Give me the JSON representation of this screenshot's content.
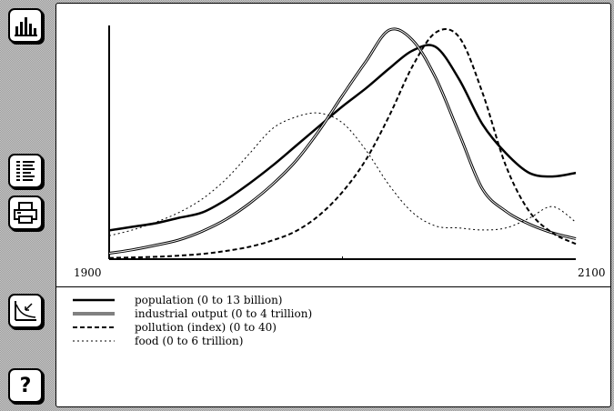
{
  "toolbar": {
    "buttons": [
      {
        "icon": "bar-chart-icon"
      },
      {
        "icon": "table-icon"
      },
      {
        "icon": "printer-icon"
      },
      {
        "icon": "graph-zoom-icon"
      },
      {
        "icon": "help-icon",
        "label": "?"
      }
    ]
  },
  "chart_data": {
    "type": "line",
    "xlim": [
      1900,
      2100
    ],
    "x_tick_labels": [
      "1900",
      "2100"
    ],
    "grid": false,
    "legend": "bottom",
    "x": [
      1900,
      1910,
      1920,
      1930,
      1940,
      1950,
      1960,
      1970,
      1980,
      1990,
      2000,
      2010,
      2020,
      2030,
      2040,
      2050,
      2060,
      2070,
      2080,
      2090,
      2100
    ],
    "series": [
      {
        "name": "population (0 to 13 billion)",
        "style": "solid-thick",
        "color": "#000000",
        "range": [
          0,
          13
        ],
        "values": [
          1.6,
          1.8,
          2.0,
          2.3,
          2.6,
          3.3,
          4.2,
          5.2,
          6.3,
          7.4,
          8.5,
          9.5,
          10.6,
          11.6,
          11.8,
          10.0,
          7.5,
          5.9,
          4.8,
          4.6,
          4.8
        ]
      },
      {
        "name": "industrial output (0 to 4 trillion)",
        "style": "double-line",
        "color": "#000000",
        "range": [
          0,
          4
        ],
        "values": [
          0.1,
          0.16,
          0.24,
          0.33,
          0.48,
          0.68,
          0.95,
          1.28,
          1.68,
          2.2,
          2.8,
          3.38,
          3.92,
          3.75,
          3.1,
          2.15,
          1.2,
          0.82,
          0.6,
          0.45,
          0.35
        ]
      },
      {
        "name": "pollution (index) (0 to 40)",
        "style": "dashed",
        "color": "#000000",
        "range": [
          0,
          40
        ],
        "values": [
          0.2,
          0.3,
          0.4,
          0.6,
          0.9,
          1.4,
          2.1,
          3.2,
          4.8,
          7.5,
          11.5,
          17.0,
          24.5,
          33.0,
          38.8,
          38.0,
          28.5,
          16.0,
          8.2,
          4.5,
          2.6
        ]
      },
      {
        "name": "food (0 to 6 trillion)",
        "style": "dotted",
        "color": "#000000",
        "range": [
          0,
          6
        ],
        "values": [
          0.6,
          0.75,
          0.95,
          1.2,
          1.55,
          2.05,
          2.7,
          3.35,
          3.65,
          3.75,
          3.5,
          2.8,
          1.9,
          1.2,
          0.85,
          0.8,
          0.75,
          0.8,
          1.05,
          1.35,
          0.95
        ]
      }
    ]
  }
}
